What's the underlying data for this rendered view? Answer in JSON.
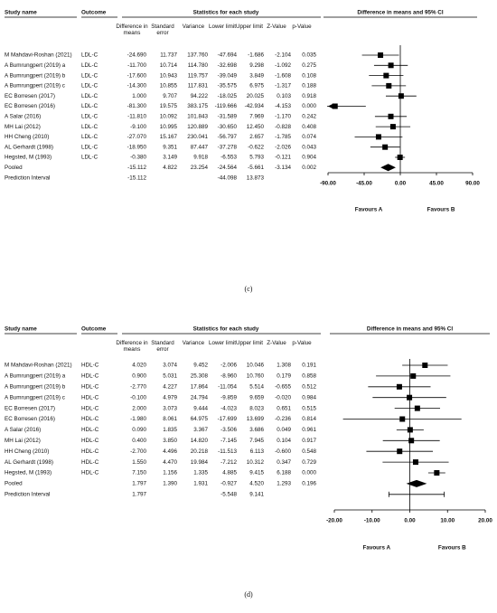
{
  "chart_data": [
    {
      "type": "forest",
      "caption": "(c)",
      "headers": {
        "study": "Study name",
        "outcome": "Outcome",
        "stats": "Statistics for each study",
        "plot": "Difference in means and 95% CI",
        "columns": [
          "Difference in means",
          "Standard error",
          "Variance",
          "Lower limit",
          "Upper limit",
          "Z-Value",
          "p-Value"
        ]
      },
      "rows": [
        {
          "study": "M Mahdavi-Roshan (2021)",
          "outcome": "LDL-C",
          "cells": [
            "-24.690",
            "11.737",
            "137.760",
            "-47.694",
            "-1.686",
            "-2.104",
            "0.035"
          ],
          "estimate": -24.69,
          "lower": -47.694,
          "upper": -1.686
        },
        {
          "study": "A Bumrungpert (2019) a",
          "outcome": "LDL-C",
          "cells": [
            "-11.700",
            "10.714",
            "114.780",
            "-32.698",
            "9.298",
            "-1.092",
            "0.275"
          ],
          "estimate": -11.7,
          "lower": -32.698,
          "upper": 9.298
        },
        {
          "study": "A Bumrungpert (2019) b",
          "outcome": "LDL-C",
          "cells": [
            "-17.600",
            "10.943",
            "119.757",
            "-39.049",
            "3.849",
            "-1.608",
            "0.108"
          ],
          "estimate": -17.6,
          "lower": -39.049,
          "upper": 3.849
        },
        {
          "study": "A Bumrungpert (2019) c",
          "outcome": "LDL-C",
          "cells": [
            "-14.300",
            "10.855",
            "117.831",
            "-35.575",
            "6.975",
            "-1.317",
            "0.188"
          ],
          "estimate": -14.3,
          "lower": -35.575,
          "upper": 6.975
        },
        {
          "study": "EC Borresen (2017)",
          "outcome": "LDL-C",
          "cells": [
            "1.000",
            "9.707",
            "94.222",
            "-18.025",
            "20.025",
            "0.103",
            "0.918"
          ],
          "estimate": 1,
          "lower": -18.025,
          "upper": 20.025
        },
        {
          "study": "EC Borresen (2016)",
          "outcome": "LDL-C",
          "cells": [
            "-81.300",
            "19.575",
            "383.175",
            "-119.666",
            "-42.934",
            "-4.153",
            "0.000"
          ],
          "estimate": -81.3,
          "lower": -119.666,
          "upper": -42.934
        },
        {
          "study": "A Salar (2016)",
          "outcome": "LDL-C",
          "cells": [
            "-11.810",
            "10.092",
            "101.843",
            "-31.589",
            "7.969",
            "-1.170",
            "0.242"
          ],
          "estimate": -11.81,
          "lower": -31.589,
          "upper": 7.969
        },
        {
          "study": "MH Lai (2012)",
          "outcome": "LDL-C",
          "cells": [
            "-9.100",
            "10.995",
            "120.889",
            "-30.650",
            "12.450",
            "-0.828",
            "0.408"
          ],
          "estimate": -9.1,
          "lower": -30.65,
          "upper": 12.45
        },
        {
          "study": "HH Cheng (2010)",
          "outcome": "LDL-C",
          "cells": [
            "-27.070",
            "15.167",
            "230.041",
            "-56.797",
            "2.657",
            "-1.785",
            "0.074"
          ],
          "estimate": -27.07,
          "lower": -56.797,
          "upper": 2.657
        },
        {
          "study": "AL Gerhardt (1998)",
          "outcome": "LDL-C",
          "cells": [
            "-18.950",
            "9.351",
            "87.447",
            "-37.278",
            "-0.622",
            "-2.026",
            "0.043"
          ],
          "estimate": -18.95,
          "lower": -37.278,
          "upper": -0.622
        },
        {
          "study": "Hegsted, M (1993)",
          "outcome": "LDL-C",
          "cells": [
            "-0.380",
            "3.149",
            "9.918",
            "-6.553",
            "5.793",
            "-0.121",
            "0.904"
          ],
          "estimate": -0.38,
          "lower": -6.553,
          "upper": 5.793
        },
        {
          "study": "Pooled",
          "outcome": null,
          "cells": [
            "-15.112",
            "4.822",
            "23.254",
            "-24.564",
            "-5.661",
            "-3.134",
            "0.002"
          ],
          "estimate": -15.112,
          "lower": -24.564,
          "upper": -5.661,
          "marker": "diamond"
        },
        {
          "study": "Prediction Interval",
          "outcome": null,
          "cells": [
            "-15.112",
            null,
            null,
            "-44.098",
            "13.873",
            null,
            null
          ],
          "estimate": -15.112,
          "lower": -44.098,
          "upper": 13.873,
          "marker": "interval"
        }
      ],
      "xlim": [
        -90,
        90
      ],
      "xticks": [
        {
          "value": -90,
          "label": "-90.00"
        },
        {
          "value": -45,
          "label": "-45.00"
        },
        {
          "value": 0,
          "label": "0.00"
        },
        {
          "value": 45,
          "label": "45.00"
        },
        {
          "value": 90,
          "label": "90.00"
        }
      ],
      "favours": [
        "Favours A",
        "Favours B"
      ]
    },
    {
      "type": "forest",
      "caption": "(d)",
      "headers": {
        "study": "Study name",
        "outcome": "Outcome",
        "stats": "Statistics for each study",
        "plot": "Difference in means and 95% CI",
        "columns": [
          "Difference in means",
          "Standard error",
          "Variance",
          "Lower limit",
          "Upper limit",
          "Z-Value",
          "p-Value"
        ]
      },
      "rows": [
        {
          "study": "M Mahdavi-Roshan (2021)",
          "outcome": "HDL-C",
          "cells": [
            "4.020",
            "3.074",
            "9.452",
            "-2.006",
            "10.046",
            "1.308",
            "0.191"
          ],
          "estimate": 4.02,
          "lower": -2.006,
          "upper": 10.046
        },
        {
          "study": "A Bumrungpert (2019) a",
          "outcome": "HDL-C",
          "cells": [
            "0.900",
            "5.031",
            "25.308",
            "-8.960",
            "10.760",
            "0.179",
            "0.858"
          ],
          "estimate": 0.9,
          "lower": -8.96,
          "upper": 10.76
        },
        {
          "study": "A Bumrungpert (2019) b",
          "outcome": "HDL-C",
          "cells": [
            "-2.770",
            "4.227",
            "17.864",
            "-11.054",
            "5.514",
            "-0.655",
            "0.512"
          ],
          "estimate": -2.77,
          "lower": -11.054,
          "upper": 5.514
        },
        {
          "study": "A Bumrungpert (2019) c",
          "outcome": "HDL-C",
          "cells": [
            "-0.100",
            "4.979",
            "24.794",
            "-9.859",
            "9.659",
            "-0.020",
            "0.984"
          ],
          "estimate": -0.1,
          "lower": -9.859,
          "upper": 9.659
        },
        {
          "study": "EC Borresen (2017)",
          "outcome": "HDL-C",
          "cells": [
            "2.000",
            "3.073",
            "9.444",
            "-4.023",
            "8.023",
            "0.651",
            "0.515"
          ],
          "estimate": 2,
          "lower": -4.023,
          "upper": 8.023
        },
        {
          "study": "EC Borresen (2016)",
          "outcome": "HDL-C",
          "cells": [
            "-1.980",
            "8.061",
            "64.975",
            "-17.699",
            "13.699",
            "-0.236",
            "0.814"
          ],
          "estimate": -1.98,
          "lower": -17.699,
          "upper": 13.699
        },
        {
          "study": "A Salar (2016)",
          "outcome": "HDL-C",
          "cells": [
            "0.090",
            "1.835",
            "3.367",
            "-3.506",
            "3.686",
            "0.049",
            "0.961"
          ],
          "estimate": 0.09,
          "lower": -3.506,
          "upper": 3.686
        },
        {
          "study": "MH Lai (2012)",
          "outcome": "HDL-C",
          "cells": [
            "0.400",
            "3.850",
            "14.820",
            "-7.145",
            "7.945",
            "0.104",
            "0.917"
          ],
          "estimate": 0.4,
          "lower": -7.145,
          "upper": 7.945
        },
        {
          "study": "HH Cheng (2010)",
          "outcome": "HDL-C",
          "cells": [
            "-2.700",
            "4.496",
            "20.218",
            "-11.513",
            "6.113",
            "-0.600",
            "0.548"
          ],
          "estimate": -2.7,
          "lower": -11.513,
          "upper": 6.113
        },
        {
          "study": "AL Gerhardt (1998)",
          "outcome": "HDL-C",
          "cells": [
            "1.550",
            "4.470",
            "19.984",
            "-7.212",
            "10.312",
            "0.347",
            "0.729"
          ],
          "estimate": 1.55,
          "lower": -7.212,
          "upper": 10.312
        },
        {
          "study": "Hegsted, M (1993)",
          "outcome": "HDL-C",
          "cells": [
            "7.150",
            "1.156",
            "1.335",
            "4.885",
            "9.415",
            "6.188",
            "0.000"
          ],
          "estimate": 7.15,
          "lower": 4.885,
          "upper": 9.415
        },
        {
          "study": "Pooled",
          "outcome": null,
          "cells": [
            "1.797",
            "1.390",
            "1.931",
            "-0.927",
            "4.520",
            "1.293",
            "0.196"
          ],
          "estimate": 1.797,
          "lower": -0.927,
          "upper": 4.52,
          "marker": "diamond"
        },
        {
          "study": "Prediction Interval",
          "outcome": null,
          "cells": [
            "1.797",
            null,
            null,
            "-5.548",
            "9.141",
            null,
            null
          ],
          "estimate": 1.797,
          "lower": -5.548,
          "upper": 9.141,
          "marker": "interval"
        }
      ],
      "xlim": [
        -20,
        20
      ],
      "xticks": [
        {
          "value": -20,
          "label": "-20.00"
        },
        {
          "value": -10,
          "label": "-10.00"
        },
        {
          "value": 0,
          "label": "0.00"
        },
        {
          "value": 10,
          "label": "10.00"
        },
        {
          "value": 20,
          "label": "20.00"
        }
      ],
      "favours": [
        "Favours A",
        "Favours B"
      ]
    }
  ]
}
